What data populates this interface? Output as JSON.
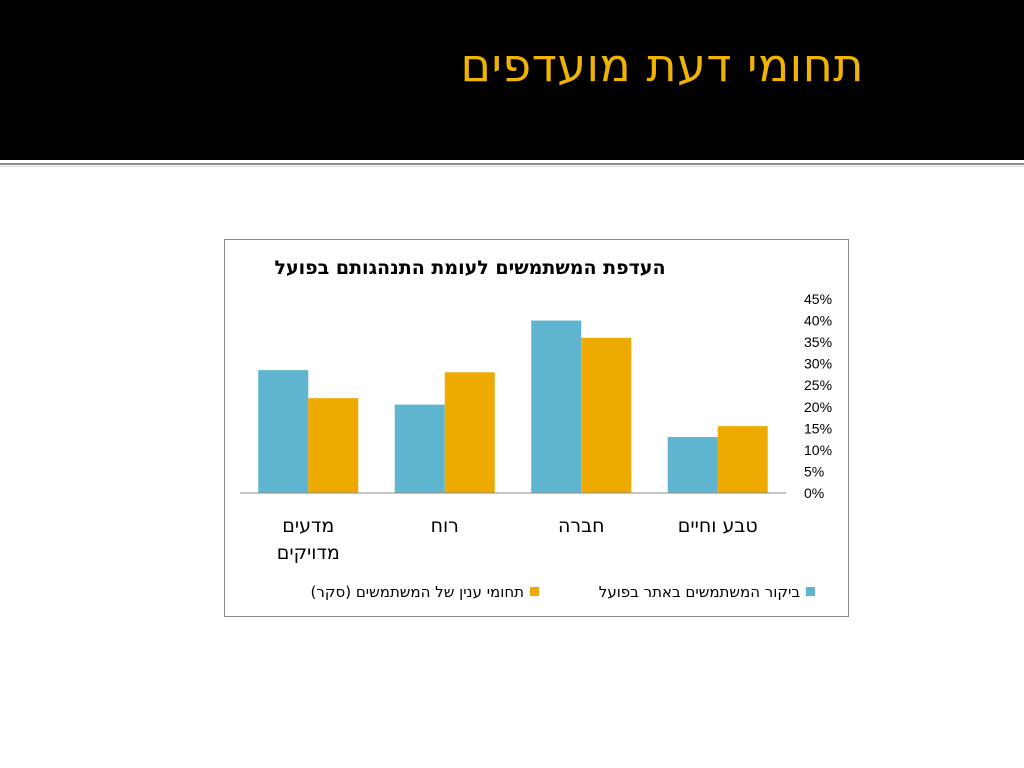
{
  "slide": {
    "title": "תחומי דעת מועדפים"
  },
  "colors": {
    "header_background": "#000000",
    "title_color": "#f0b400",
    "series_actual": "#5fb5d0",
    "series_survey": "#eeaa00"
  },
  "chart_data": {
    "type": "bar",
    "title": "העדפת המשתמשים לעומת התנהגותם בפועל",
    "categories": [
      "טבע וחיים",
      "חברה",
      "רוח",
      "מדעים מדויקים"
    ],
    "category_lines": [
      [
        "טבע וחיים"
      ],
      [
        "חברה"
      ],
      [
        "רוח"
      ],
      [
        "מדעים",
        "מדויקים"
      ]
    ],
    "category_direction": "right-to-left",
    "series": [
      {
        "name": "ביקור המשתמשים באתר בפועל",
        "color": "#5fb5d0",
        "values": [
          13,
          40,
          20.5,
          28.5
        ]
      },
      {
        "name": "תחומי ענין של המשתמשים (סקר)",
        "color": "#eeaa00",
        "values": [
          15.5,
          36,
          28,
          22
        ]
      }
    ],
    "ylim": [
      0,
      45
    ],
    "yticks": [
      "0%",
      "5%",
      "10%",
      "15%",
      "20%",
      "25%",
      "30%",
      "35%",
      "40%",
      "45%"
    ],
    "ytick_values": [
      0,
      5,
      10,
      15,
      20,
      25,
      30,
      35,
      40,
      45
    ],
    "y_axis_side": "right",
    "grid": false,
    "legend_position": "bottom"
  }
}
